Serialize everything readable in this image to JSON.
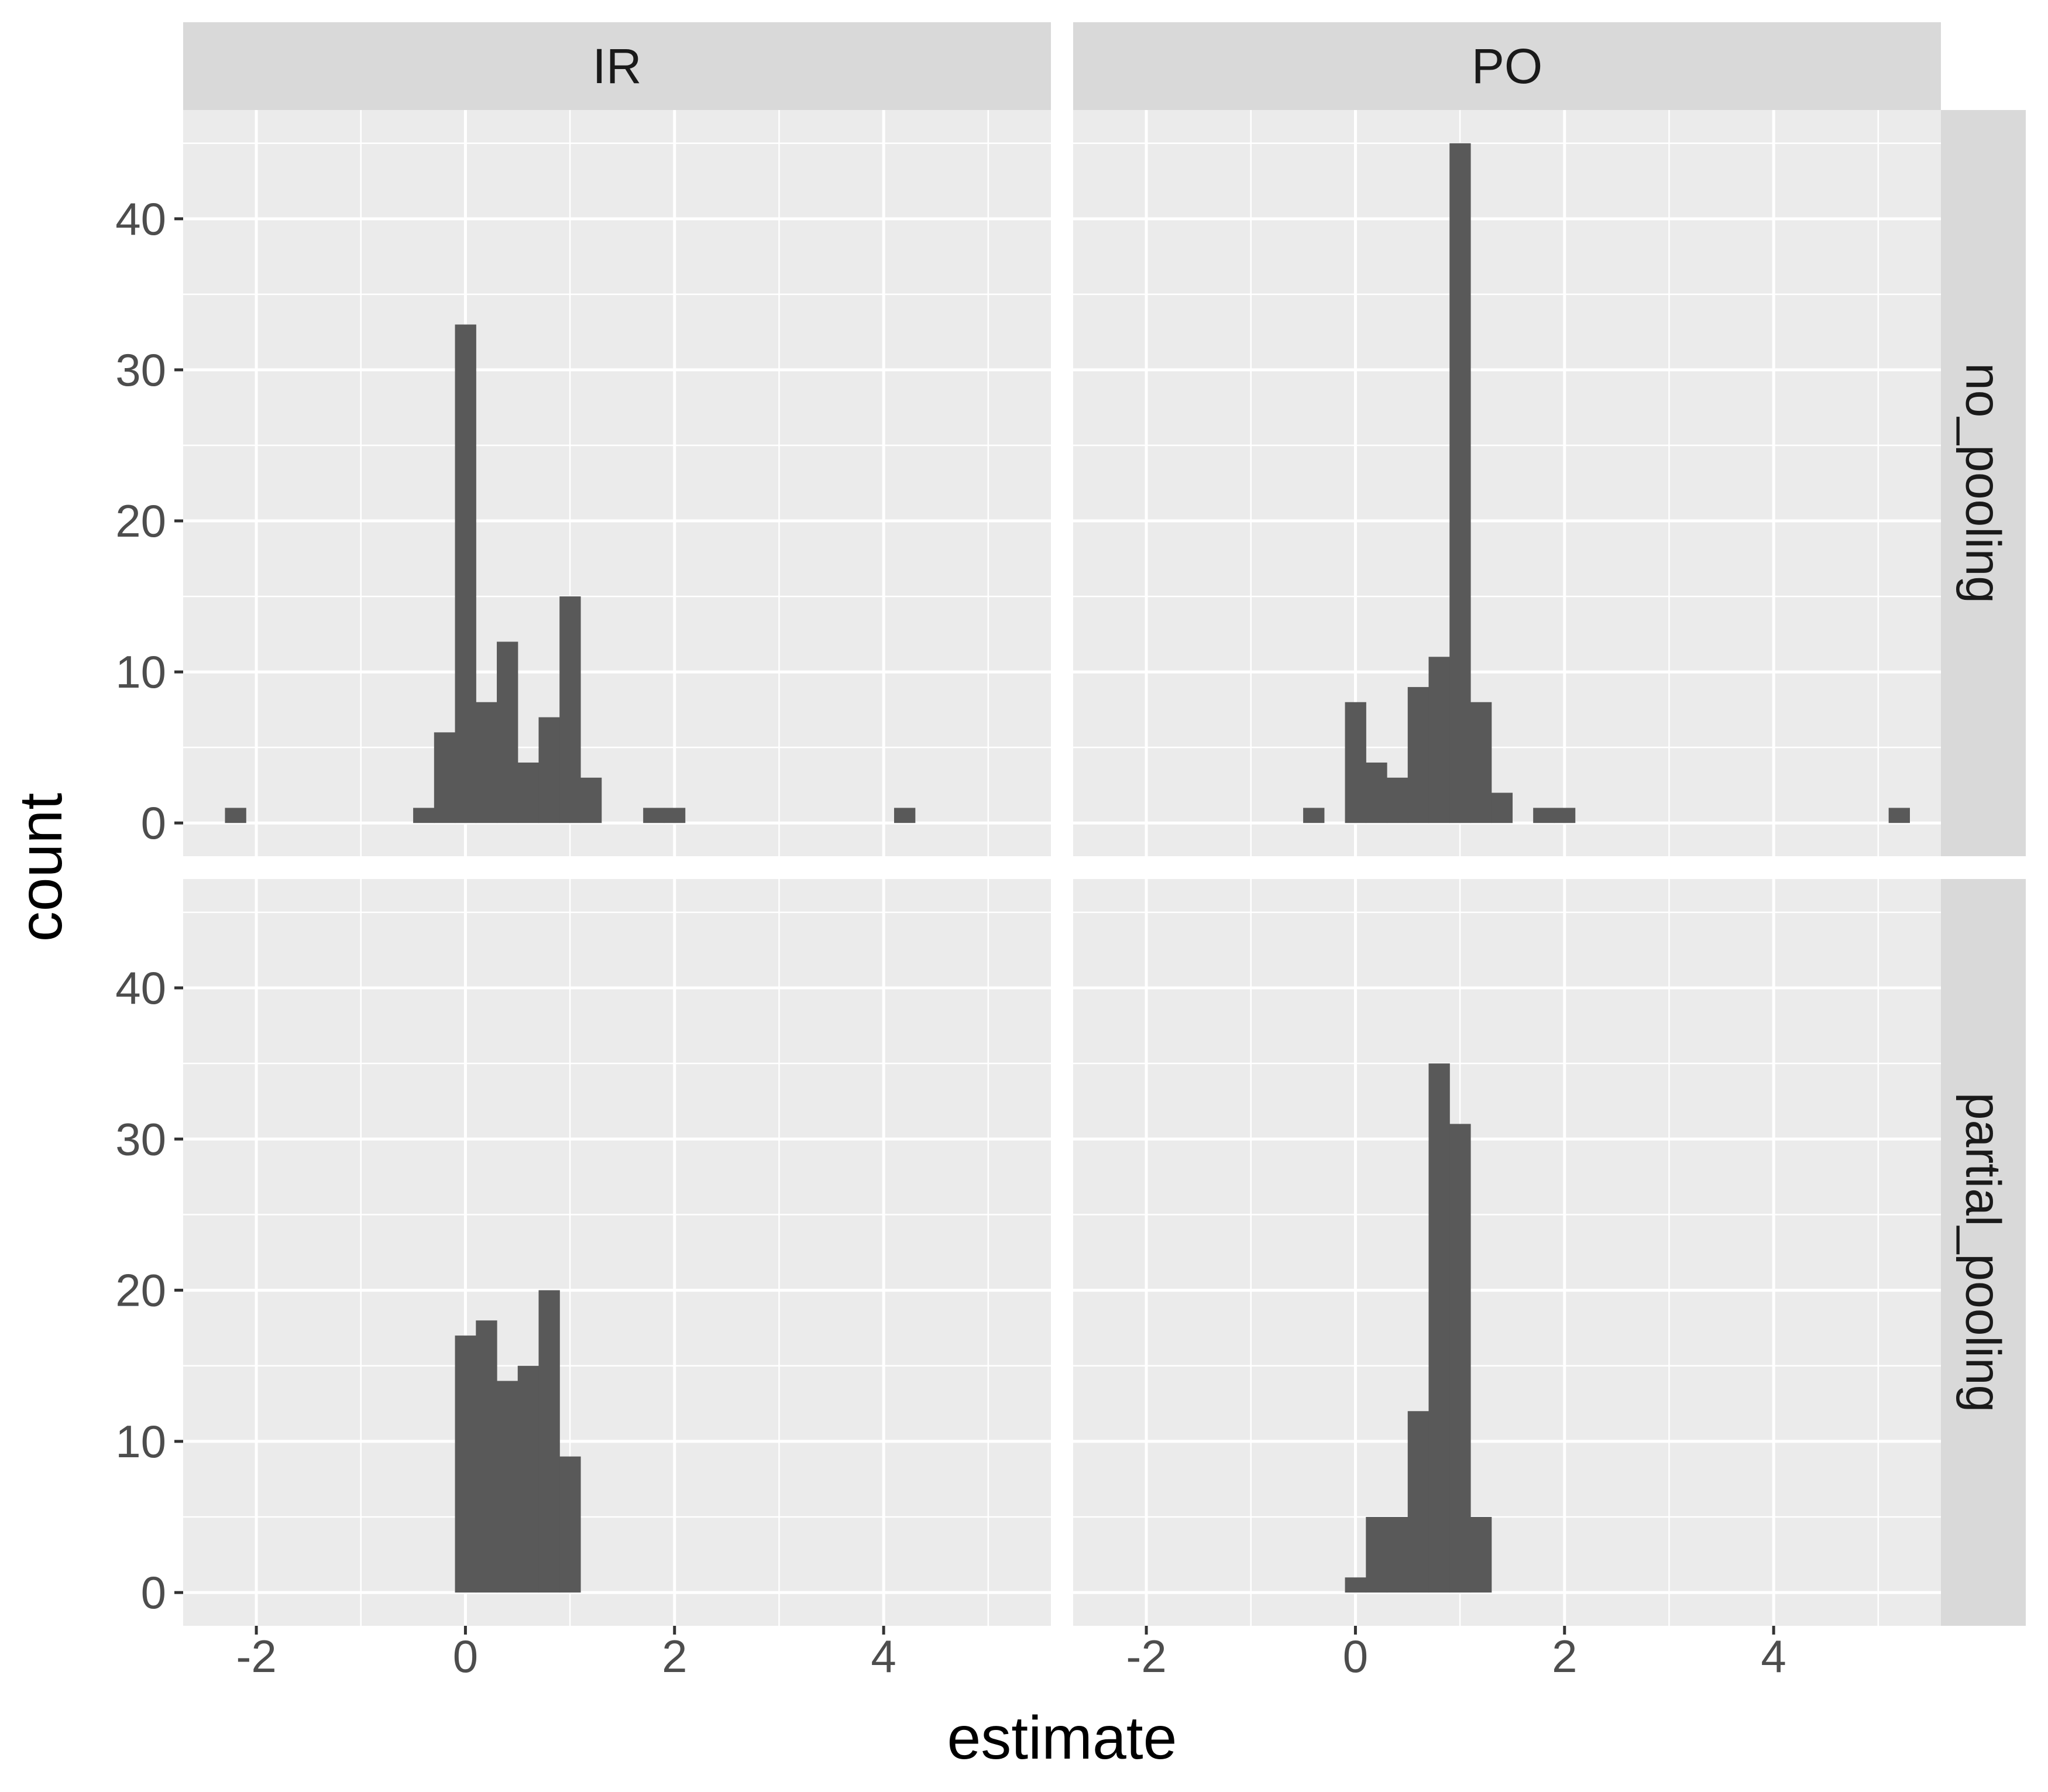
{
  "chart_data": {
    "type": "bar",
    "chart_kind": "histogram",
    "title": "",
    "xlabel": "estimate",
    "ylabel": "count",
    "xlim": [
      -2.7,
      5.6
    ],
    "ylim": [
      -2.2,
      47.2
    ],
    "x_ticks": [
      -2,
      0,
      2,
      4
    ],
    "x_tick_labels": [
      "-2",
      "0",
      "2",
      "4"
    ],
    "y_ticks": [
      0,
      10,
      20,
      30,
      40
    ],
    "y_tick_labels": [
      "0",
      "10",
      "20",
      "30",
      "40"
    ],
    "grid": true,
    "legend": "none",
    "bar_color": "#595959",
    "panel_background": "#ebebeb",
    "strip_background": "#d9d9d9",
    "bin_width": 0.2,
    "facet_columns": [
      "IR",
      "PO"
    ],
    "facet_rows": [
      "no_pooling",
      "partial_pooling"
    ],
    "panels": [
      {
        "column": "IR",
        "row": "no_pooling",
        "bins": [
          {
            "x": -2.2,
            "count": 1
          },
          {
            "x": -0.4,
            "count": 1
          },
          {
            "x": -0.2,
            "count": 6
          },
          {
            "x": 0.0,
            "count": 33
          },
          {
            "x": 0.2,
            "count": 8
          },
          {
            "x": 0.4,
            "count": 12
          },
          {
            "x": 0.6,
            "count": 4
          },
          {
            "x": 0.8,
            "count": 7
          },
          {
            "x": 1.0,
            "count": 15
          },
          {
            "x": 1.2,
            "count": 3
          },
          {
            "x": 1.8,
            "count": 1
          },
          {
            "x": 2.0,
            "count": 1
          },
          {
            "x": 4.2,
            "count": 1
          }
        ]
      },
      {
        "column": "PO",
        "row": "no_pooling",
        "bins": [
          {
            "x": -0.4,
            "count": 1
          },
          {
            "x": 0.0,
            "count": 8
          },
          {
            "x": 0.2,
            "count": 4
          },
          {
            "x": 0.4,
            "count": 3
          },
          {
            "x": 0.6,
            "count": 9
          },
          {
            "x": 0.8,
            "count": 11
          },
          {
            "x": 1.0,
            "count": 45
          },
          {
            "x": 1.2,
            "count": 8
          },
          {
            "x": 1.4,
            "count": 2
          },
          {
            "x": 1.8,
            "count": 1
          },
          {
            "x": 2.0,
            "count": 1
          },
          {
            "x": 5.2,
            "count": 1
          }
        ]
      },
      {
        "column": "IR",
        "row": "partial_pooling",
        "bins": [
          {
            "x": 0.0,
            "count": 17
          },
          {
            "x": 0.2,
            "count": 18
          },
          {
            "x": 0.4,
            "count": 14
          },
          {
            "x": 0.6,
            "count": 15
          },
          {
            "x": 0.8,
            "count": 20
          },
          {
            "x": 1.0,
            "count": 9
          }
        ]
      },
      {
        "column": "PO",
        "row": "partial_pooling",
        "bins": [
          {
            "x": 0.0,
            "count": 1
          },
          {
            "x": 0.2,
            "count": 5
          },
          {
            "x": 0.4,
            "count": 5
          },
          {
            "x": 0.6,
            "count": 12
          },
          {
            "x": 0.8,
            "count": 35
          },
          {
            "x": 1.0,
            "count": 31
          },
          {
            "x": 1.2,
            "count": 5
          }
        ]
      }
    ]
  }
}
